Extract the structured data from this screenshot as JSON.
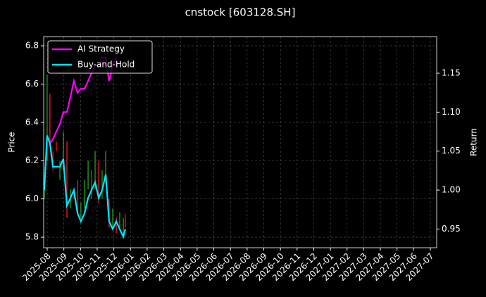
{
  "chart_data": {
    "type": "candlestick",
    "title": "cnstock [603128.SH]",
    "ylabel": "Price",
    "y2label": "Return",
    "x": [
      2025.569,
      2025.583,
      2025.597,
      2025.612,
      2025.629,
      2025.647,
      2025.664,
      2025.682,
      2025.7,
      2025.717,
      2025.735,
      2025.752,
      2025.77,
      2025.788,
      2025.805,
      2025.823,
      2025.841,
      2025.858,
      2025.876,
      2025.893,
      2025.911,
      2025.929,
      2025.946,
      2025.964,
      2025.974
    ],
    "open": [
      6.0,
      6.2,
      6.55,
      6.25,
      6.3,
      6.1,
      6.15,
      6.3,
      5.95,
      6.05,
      6.1,
      5.9,
      5.95,
      6.05,
      6.15,
      6.05,
      6.2,
      6.0,
      6.1,
      6.0,
      5.85,
      5.9,
      5.85,
      5.8,
      5.92
    ],
    "close": [
      6.1,
      6.65,
      6.3,
      6.15,
      6.25,
      6.2,
      6.35,
      5.9,
      6.05,
      6.0,
      5.92,
      5.98,
      6.1,
      6.2,
      6.0,
      6.25,
      5.98,
      6.15,
      6.25,
      5.85,
      5.95,
      5.82,
      5.93,
      5.9,
      5.85
    ],
    "up_color": "#1f8a1f",
    "down_color": "#d01a1a",
    "series": [
      {
        "name": "AI Strategy",
        "color": "#ff00ff",
        "axis": "y2",
        "values": [
          null,
          null,
          1.06,
          1.065,
          1.075,
          1.085,
          1.1,
          1.1,
          1.12,
          1.14,
          1.125,
          1.13,
          1.13,
          1.14,
          1.15,
          1.16,
          1.16,
          1.17,
          1.17,
          1.14,
          1.16,
          1.17,
          null,
          null,
          null
        ]
      },
      {
        "name": "Buy-and-Hold",
        "color": "#00e5ff",
        "axis": "y2",
        "values": [
          1.0,
          1.07,
          1.06,
          1.03,
          1.03,
          1.03,
          1.04,
          0.98,
          0.99,
          1.0,
          0.97,
          0.96,
          0.97,
          0.99,
          1.0,
          1.01,
          0.99,
          1.0,
          1.02,
          0.96,
          0.95,
          0.96,
          0.95,
          0.94,
          0.95
        ]
      }
    ],
    "xlim": [
      2025.5657,
      2027.5317
    ],
    "xticks": [
      {
        "value": 2025.5833,
        "label": "2025-08"
      },
      {
        "value": 2025.6667,
        "label": "2025-09"
      },
      {
        "value": 2025.75,
        "label": "2025-10"
      },
      {
        "value": 2025.8333,
        "label": "2025-11"
      },
      {
        "value": 2025.9167,
        "label": "2025-12"
      },
      {
        "value": 2026.0,
        "label": "2026-01"
      },
      {
        "value": 2026.0833,
        "label": "2026-02"
      },
      {
        "value": 2026.1667,
        "label": "2026-03"
      },
      {
        "value": 2026.25,
        "label": "2026-04"
      },
      {
        "value": 2026.3333,
        "label": "2026-05"
      },
      {
        "value": 2026.4167,
        "label": "2026-06"
      },
      {
        "value": 2026.5,
        "label": "2026-07"
      },
      {
        "value": 2026.5833,
        "label": "2026-08"
      },
      {
        "value": 2026.6667,
        "label": "2026-09"
      },
      {
        "value": 2026.75,
        "label": "2026-10"
      },
      {
        "value": 2026.8333,
        "label": "2026-11"
      },
      {
        "value": 2026.9167,
        "label": "2026-12"
      },
      {
        "value": 2027.0,
        "label": "2027-01"
      },
      {
        "value": 2027.0833,
        "label": "2027-02"
      },
      {
        "value": 2027.1667,
        "label": "2027-03"
      },
      {
        "value": 2027.25,
        "label": "2027-04"
      },
      {
        "value": 2027.3333,
        "label": "2027-05"
      },
      {
        "value": 2027.4167,
        "label": "2027-06"
      },
      {
        "value": 2027.5,
        "label": "2027-07"
      }
    ],
    "ylim": [
      5.745,
      6.848
    ],
    "yticks": [
      5.8,
      {
        "value": 6,
        "label": "6.0"
      },
      6.2,
      6.4,
      6.6,
      6.8
    ],
    "y2lim": [
      0.926,
      1.197
    ],
    "y2ticks": [
      0.95,
      {
        "value": 1,
        "label": "1.00"
      },
      1.05,
      {
        "value": 1.1,
        "label": "1.10"
      },
      1.15
    ],
    "grid": true,
    "legend": "upper-left"
  }
}
